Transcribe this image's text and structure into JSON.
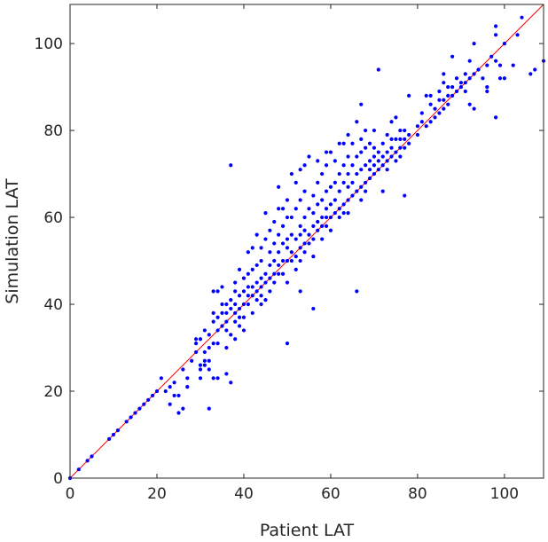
{
  "chart_data": {
    "type": "scatter",
    "xlabel": "Patient LAT",
    "ylabel": "Simulation LAT",
    "xlim": [
      0,
      109
    ],
    "ylim": [
      0,
      109
    ],
    "xticks": [
      0,
      20,
      40,
      60,
      80,
      100
    ],
    "yticks": [
      0,
      20,
      40,
      60,
      80,
      100
    ],
    "grid": false,
    "point_color": "#0000ff",
    "reference_line": {
      "from": [
        0,
        0
      ],
      "to": [
        109,
        109
      ],
      "color": "#ff0000"
    },
    "points": [
      [
        0,
        0
      ],
      [
        2,
        2
      ],
      [
        4,
        4
      ],
      [
        5,
        5
      ],
      [
        9,
        9
      ],
      [
        10,
        10
      ],
      [
        11,
        11
      ],
      [
        13,
        13
      ],
      [
        14,
        14
      ],
      [
        15,
        15
      ],
      [
        16,
        16
      ],
      [
        17,
        17
      ],
      [
        18,
        18
      ],
      [
        19,
        19
      ],
      [
        20,
        20
      ],
      [
        21,
        23
      ],
      [
        22,
        20
      ],
      [
        23,
        21
      ],
      [
        23,
        17
      ],
      [
        24,
        22
      ],
      [
        24,
        19
      ],
      [
        25,
        15
      ],
      [
        25,
        19
      ],
      [
        26,
        16
      ],
      [
        26,
        25
      ],
      [
        27,
        21
      ],
      [
        27,
        23
      ],
      [
        28,
        27
      ],
      [
        29,
        29
      ],
      [
        29,
        31
      ],
      [
        29,
        32
      ],
      [
        30,
        32
      ],
      [
        30,
        26
      ],
      [
        30,
        25
      ],
      [
        30,
        23
      ],
      [
        31,
        27
      ],
      [
        31,
        29
      ],
      [
        31,
        26
      ],
      [
        31,
        34
      ],
      [
        32,
        16
      ],
      [
        32,
        25
      ],
      [
        32,
        27
      ],
      [
        32,
        30
      ],
      [
        32,
        33
      ],
      [
        33,
        23
      ],
      [
        33,
        31
      ],
      [
        33,
        36
      ],
      [
        33,
        38
      ],
      [
        33,
        43
      ],
      [
        34,
        23
      ],
      [
        34,
        31
      ],
      [
        34,
        34
      ],
      [
        34,
        37
      ],
      [
        34,
        43
      ],
      [
        35,
        35
      ],
      [
        35,
        38
      ],
      [
        35,
        40
      ],
      [
        35,
        44
      ],
      [
        36,
        24
      ],
      [
        36,
        30
      ],
      [
        36,
        36
      ],
      [
        36,
        38
      ],
      [
        36,
        40
      ],
      [
        36,
        34
      ],
      [
        37,
        22
      ],
      [
        37,
        33
      ],
      [
        37,
        39
      ],
      [
        37,
        41
      ],
      [
        37,
        72
      ],
      [
        38,
        32
      ],
      [
        38,
        36
      ],
      [
        38,
        38
      ],
      [
        38,
        40
      ],
      [
        38,
        43
      ],
      [
        38,
        45
      ],
      [
        39,
        35
      ],
      [
        39,
        37
      ],
      [
        39,
        39
      ],
      [
        39,
        42
      ],
      [
        39,
        48
      ],
      [
        40,
        34
      ],
      [
        40,
        37
      ],
      [
        40,
        40
      ],
      [
        40,
        43
      ],
      [
        40,
        46
      ],
      [
        41,
        40
      ],
      [
        41,
        42
      ],
      [
        41,
        44
      ],
      [
        41,
        47
      ],
      [
        41,
        52
      ],
      [
        42,
        38
      ],
      [
        42,
        42
      ],
      [
        42,
        44
      ],
      [
        42,
        48
      ],
      [
        42,
        53
      ],
      [
        43,
        41
      ],
      [
        43,
        43
      ],
      [
        43,
        45
      ],
      [
        43,
        49
      ],
      [
        43,
        56
      ],
      [
        44,
        40
      ],
      [
        44,
        42
      ],
      [
        44,
        44
      ],
      [
        44,
        46
      ],
      [
        44,
        50
      ],
      [
        44,
        53
      ],
      [
        45,
        41
      ],
      [
        45,
        45
      ],
      [
        45,
        47
      ],
      [
        45,
        55
      ],
      [
        45,
        61
      ],
      [
        46,
        43
      ],
      [
        46,
        46
      ],
      [
        46,
        49
      ],
      [
        46,
        52
      ],
      [
        46,
        57
      ],
      [
        47,
        45
      ],
      [
        47,
        47
      ],
      [
        47,
        50
      ],
      [
        47,
        54
      ],
      [
        47,
        59
      ],
      [
        48,
        47
      ],
      [
        48,
        49
      ],
      [
        48,
        52
      ],
      [
        48,
        56
      ],
      [
        48,
        62
      ],
      [
        48,
        67
      ],
      [
        49,
        47
      ],
      [
        49,
        50
      ],
      [
        49,
        54
      ],
      [
        49,
        58
      ],
      [
        49,
        62
      ],
      [
        50,
        31
      ],
      [
        50,
        45
      ],
      [
        50,
        50
      ],
      [
        50,
        53
      ],
      [
        50,
        55
      ],
      [
        50,
        60
      ],
      [
        50,
        64
      ],
      [
        51,
        50
      ],
      [
        51,
        52
      ],
      [
        51,
        56
      ],
      [
        51,
        60
      ],
      [
        51,
        70
      ],
      [
        52,
        48
      ],
      [
        52,
        51
      ],
      [
        52,
        55
      ],
      [
        52,
        62
      ],
      [
        52,
        68
      ],
      [
        53,
        43
      ],
      [
        53,
        50
      ],
      [
        53,
        53
      ],
      [
        53,
        56
      ],
      [
        53,
        58
      ],
      [
        53,
        64
      ],
      [
        53,
        71
      ],
      [
        54,
        52
      ],
      [
        54,
        54
      ],
      [
        54,
        57
      ],
      [
        54,
        60
      ],
      [
        54,
        66
      ],
      [
        54,
        72
      ],
      [
        55,
        54
      ],
      [
        55,
        56
      ],
      [
        55,
        62
      ],
      [
        55,
        74
      ],
      [
        56,
        39
      ],
      [
        56,
        51
      ],
      [
        56,
        55
      ],
      [
        56,
        58
      ],
      [
        56,
        61
      ],
      [
        56,
        65
      ],
      [
        57,
        57
      ],
      [
        57,
        59
      ],
      [
        57,
        63
      ],
      [
        57,
        68
      ],
      [
        57,
        73
      ],
      [
        58,
        55
      ],
      [
        58,
        58
      ],
      [
        58,
        60
      ],
      [
        58,
        64
      ],
      [
        58,
        70
      ],
      [
        59,
        58
      ],
      [
        59,
        60
      ],
      [
        59,
        62
      ],
      [
        59,
        66
      ],
      [
        59,
        72
      ],
      [
        59,
        75
      ],
      [
        60,
        57
      ],
      [
        60,
        60
      ],
      [
        60,
        63
      ],
      [
        60,
        67
      ],
      [
        60,
        75
      ],
      [
        61,
        61
      ],
      [
        61,
        64
      ],
      [
        61,
        68
      ],
      [
        61,
        73
      ],
      [
        62,
        60
      ],
      [
        62,
        62
      ],
      [
        62,
        66
      ],
      [
        62,
        70
      ],
      [
        62,
        77
      ],
      [
        63,
        61
      ],
      [
        63,
        63
      ],
      [
        63,
        68
      ],
      [
        63,
        72
      ],
      [
        63,
        77
      ],
      [
        64,
        61
      ],
      [
        64,
        64
      ],
      [
        64,
        67
      ],
      [
        64,
        70
      ],
      [
        64,
        74
      ],
      [
        64,
        79
      ],
      [
        65,
        65
      ],
      [
        65,
        68
      ],
      [
        65,
        72
      ],
      [
        65,
        77
      ],
      [
        66,
        43
      ],
      [
        66,
        66
      ],
      [
        66,
        70
      ],
      [
        66,
        74
      ],
      [
        66,
        82
      ],
      [
        67,
        64
      ],
      [
        67,
        67
      ],
      [
        67,
        71
      ],
      [
        67,
        75
      ],
      [
        67,
        78
      ],
      [
        67,
        86
      ],
      [
        68,
        66
      ],
      [
        68,
        68
      ],
      [
        68,
        72
      ],
      [
        68,
        76
      ],
      [
        68,
        80
      ],
      [
        69,
        69
      ],
      [
        69,
        71
      ],
      [
        69,
        73
      ],
      [
        69,
        77
      ],
      [
        70,
        70
      ],
      [
        70,
        72
      ],
      [
        70,
        74
      ],
      [
        70,
        76
      ],
      [
        70,
        80
      ],
      [
        71,
        71
      ],
      [
        71,
        73
      ],
      [
        71,
        75
      ],
      [
        71,
        94
      ],
      [
        72,
        66
      ],
      [
        72,
        72
      ],
      [
        72,
        74
      ],
      [
        72,
        77
      ],
      [
        73,
        71
      ],
      [
        73,
        73
      ],
      [
        73,
        75
      ],
      [
        73,
        79
      ],
      [
        74,
        74
      ],
      [
        74,
        76
      ],
      [
        74,
        78
      ],
      [
        74,
        82
      ],
      [
        75,
        73
      ],
      [
        75,
        75
      ],
      [
        75,
        78
      ],
      [
        75,
        83
      ],
      [
        76,
        74
      ],
      [
        76,
        76
      ],
      [
        76,
        78
      ],
      [
        76,
        80
      ],
      [
        77,
        65
      ],
      [
        77,
        76
      ],
      [
        77,
        78
      ],
      [
        77,
        80
      ],
      [
        78,
        77
      ],
      [
        78,
        79
      ],
      [
        78,
        88
      ],
      [
        80,
        79
      ],
      [
        80,
        81
      ],
      [
        81,
        82
      ],
      [
        81,
        84
      ],
      [
        82,
        81
      ],
      [
        82,
        88
      ],
      [
        83,
        82
      ],
      [
        83,
        86
      ],
      [
        83,
        88
      ],
      [
        84,
        83
      ],
      [
        84,
        85
      ],
      [
        85,
        84
      ],
      [
        85,
        87
      ],
      [
        85,
        89
      ],
      [
        86,
        85
      ],
      [
        86,
        87
      ],
      [
        86,
        91
      ],
      [
        86,
        93
      ],
      [
        87,
        86
      ],
      [
        87,
        88
      ],
      [
        87,
        90
      ],
      [
        88,
        88
      ],
      [
        88,
        90
      ],
      [
        88,
        97
      ],
      [
        89,
        89
      ],
      [
        89,
        92
      ],
      [
        90,
        90
      ],
      [
        90,
        91
      ],
      [
        91,
        89
      ],
      [
        91,
        91
      ],
      [
        91,
        93
      ],
      [
        92,
        86
      ],
      [
        92,
        92
      ],
      [
        92,
        96
      ],
      [
        93,
        85
      ],
      [
        93,
        93
      ],
      [
        93,
        100
      ],
      [
        94,
        94
      ],
      [
        95,
        92
      ],
      [
        96,
        90
      ],
      [
        96,
        95
      ],
      [
        96,
        89
      ],
      [
        97,
        97
      ],
      [
        98,
        83
      ],
      [
        98,
        96
      ],
      [
        98,
        102
      ],
      [
        98,
        104
      ],
      [
        99,
        95
      ],
      [
        99,
        92
      ],
      [
        100,
        100
      ],
      [
        100,
        92
      ],
      [
        102,
        95
      ],
      [
        103,
        102
      ],
      [
        104,
        106
      ],
      [
        106,
        93
      ],
      [
        107,
        94
      ],
      [
        109,
        96
      ]
    ]
  }
}
